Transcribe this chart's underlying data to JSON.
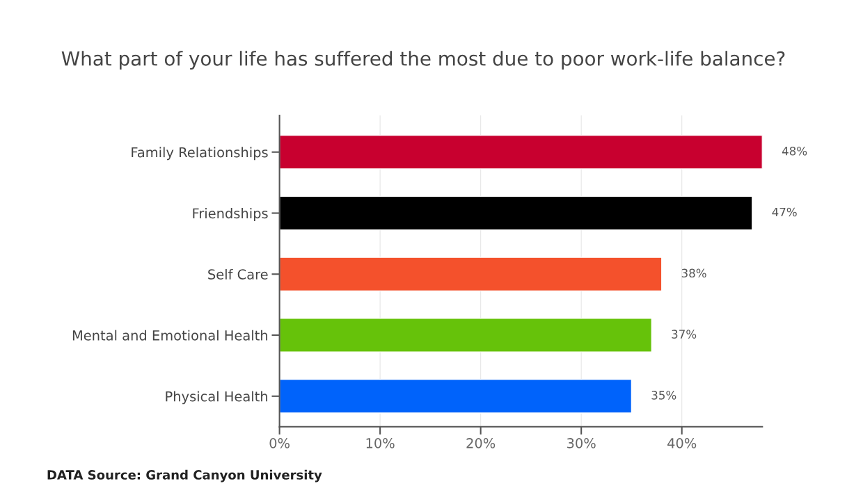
{
  "chart_data": {
    "type": "bar",
    "orientation": "horizontal",
    "title": "What part of your life has suffered the most due to poor work-life balance?",
    "categories": [
      "Family Relationships",
      "Friendships",
      "Self Care",
      "Mental and Emotional Health",
      "Physical Health"
    ],
    "values": [
      48,
      47,
      38,
      37,
      35
    ],
    "colors": [
      "#c8002f",
      "#000000",
      "#f4512c",
      "#66c20a",
      "#0063fb"
    ],
    "value_labels": [
      "48%",
      "47%",
      "38%",
      "37%",
      "35%"
    ],
    "xlim": [
      0,
      48
    ],
    "xticks": [
      {
        "value": 0,
        "label": "0%"
      },
      {
        "value": 10,
        "label": "10%"
      },
      {
        "value": 20,
        "label": "20%"
      },
      {
        "value": 30,
        "label": "30%"
      },
      {
        "value": 40,
        "label": "40%"
      }
    ],
    "grid": "x",
    "annotations": [
      "DATA Source: Grand Canyon University"
    ]
  }
}
